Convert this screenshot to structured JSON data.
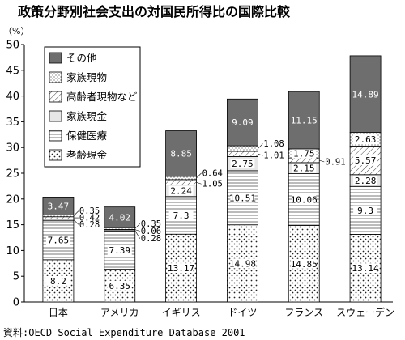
{
  "chart_data": {
    "type": "bar",
    "stacked": true,
    "title": "政策分野別社会支出の対国民所得比の国際比較",
    "unit": "（%）",
    "ylim": [
      0,
      50
    ],
    "yticks": [
      0,
      5,
      10,
      15,
      20,
      25,
      30,
      35,
      40,
      45,
      50
    ],
    "categories": [
      "日本",
      "アメリカ",
      "イギリス",
      "ドイツ",
      "フランス",
      "スウェーデン"
    ],
    "series": [
      {
        "name": "老齢現金",
        "pattern": "dots",
        "values": [
          8.2,
          6.35,
          13.17,
          14.98,
          14.85,
          13.14
        ]
      },
      {
        "name": "保健医療",
        "pattern": "hlines",
        "values": [
          7.65,
          7.39,
          7.3,
          10.51,
          10.06,
          9.3
        ]
      },
      {
        "name": "家族現金",
        "pattern": "lightgray",
        "values": [
          0.28,
          0.28,
          2.24,
          2.75,
          2.15,
          2.28
        ]
      },
      {
        "name": "高齢者現物など",
        "pattern": "diag",
        "values": [
          0.42,
          0.06,
          1.05,
          1.01,
          0.91,
          5.57
        ]
      },
      {
        "name": "家族現物",
        "pattern": "crosshatch",
        "values": [
          0.35,
          0.35,
          0.64,
          1.08,
          1.75,
          2.63
        ]
      },
      {
        "name": "その他",
        "pattern": "darkgray",
        "values": [
          3.47,
          4.02,
          8.85,
          9.09,
          11.15,
          14.89
        ]
      }
    ],
    "labels": [
      [
        "8.2",
        "7.65",
        "0.28",
        "0.42",
        "0.35",
        "3.47"
      ],
      [
        "6.35",
        "7.39",
        "0.28",
        "0.06",
        "0.35",
        "4.02"
      ],
      [
        "13.17",
        "7.3",
        "2.24",
        "1.05",
        "0.64",
        "8.85"
      ],
      [
        "14.98",
        "10.51",
        "2.75",
        "1.01",
        "1.08",
        "9.09"
      ],
      [
        "14.85",
        "10.06",
        "2.15",
        "0.91",
        "1.75",
        "11.15"
      ],
      [
        "13.14",
        "9.3",
        "2.28",
        "5.57",
        "2.63",
        "14.89"
      ]
    ],
    "legend": {
      "placement": "top-left",
      "order": [
        "その他",
        "家族現物",
        "高齢者現物など",
        "家族現金",
        "保健医療",
        "老齢現金"
      ]
    },
    "source": "資料:OECD Social Expenditure Database 2001"
  }
}
